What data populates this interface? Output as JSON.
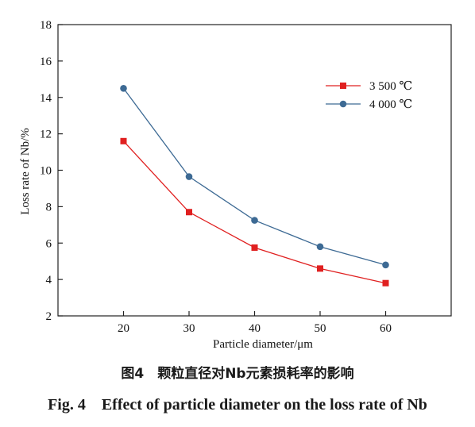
{
  "chart_data": {
    "type": "line",
    "title": "",
    "xlabel": "Particle diameter/μm",
    "ylabel": "Loss rate of Nb/%",
    "x": [
      20,
      30,
      40,
      50,
      60
    ],
    "xlim": [
      10,
      70
    ],
    "ylim": [
      2,
      18
    ],
    "xticks": [
      20,
      30,
      40,
      50,
      60
    ],
    "yticks": [
      2,
      4,
      6,
      8,
      10,
      12,
      14,
      16,
      18
    ],
    "grid": false,
    "legend_position": "top-right",
    "series": [
      {
        "name": "3 500 ℃",
        "values": [
          11.6,
          7.7,
          5.75,
          4.6,
          3.8
        ],
        "color": "#e02020",
        "marker": "square"
      },
      {
        "name": "4 000 ℃",
        "values": [
          14.5,
          9.65,
          7.25,
          5.8,
          4.8
        ],
        "color": "#3d6a94",
        "marker": "circle"
      }
    ]
  },
  "caption": {
    "cn": "图4　颗粒直径对Nb元素损耗率的影响",
    "en": "Fig. 4　Effect of particle diameter on the loss rate of Nb"
  }
}
